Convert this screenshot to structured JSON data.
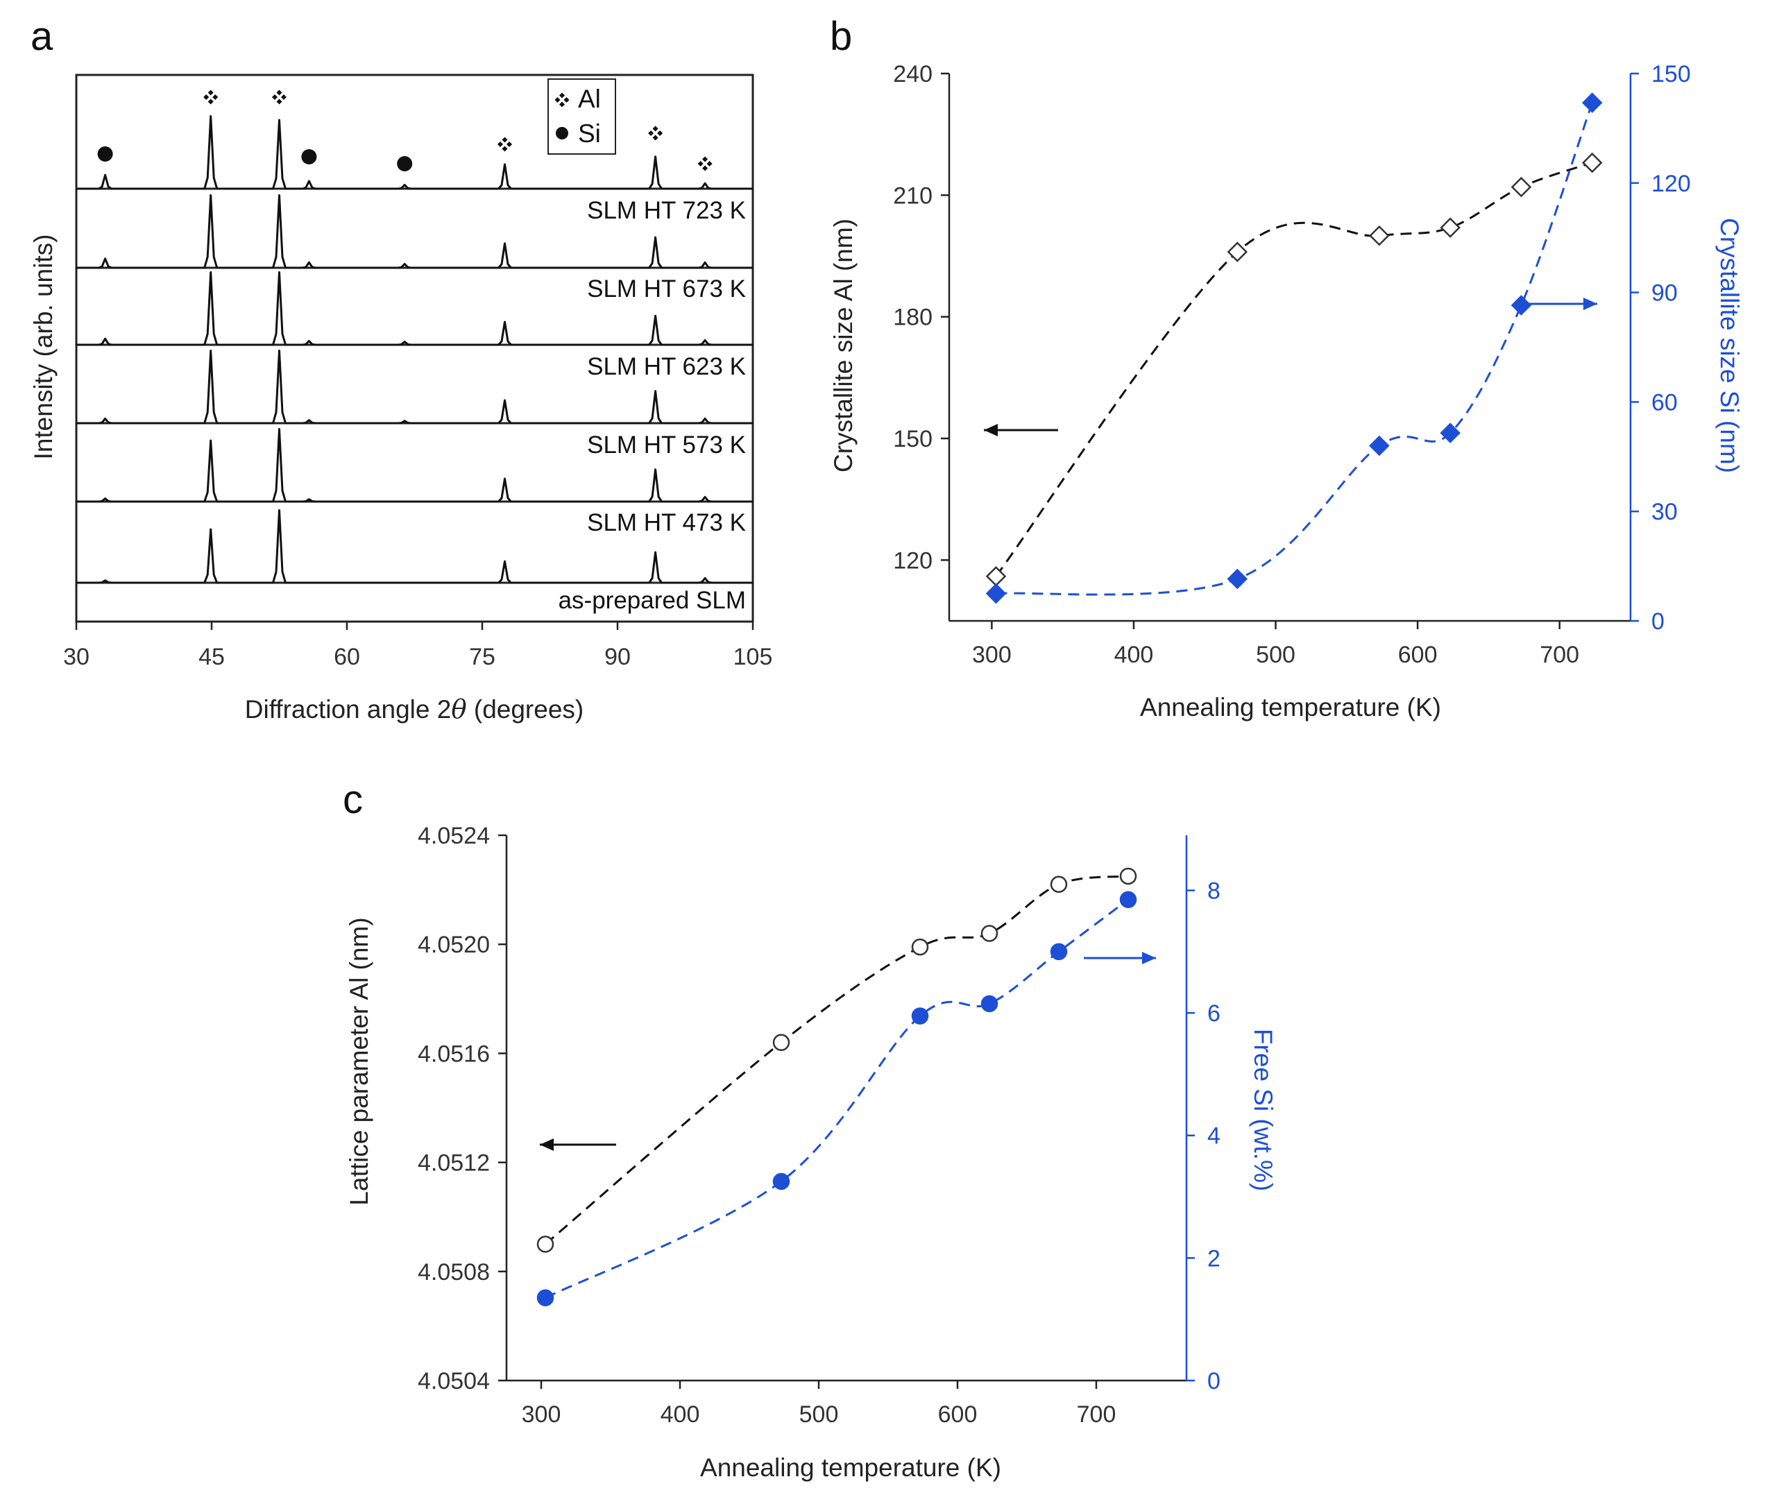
{
  "colors": {
    "black": "#111111",
    "blue": "#1d4fd6"
  },
  "chart_data": [
    {
      "panel": "a",
      "type": "line",
      "xlabel": "Diffraction angle 2θ (degrees)",
      "ylabel": "Intensity (arb. units)",
      "xlim": [
        30,
        105
      ],
      "xticks": [
        "30",
        "45",
        "60",
        "75",
        "90",
        "105"
      ],
      "legend": [
        {
          "marker": "diamond-cluster-icon",
          "label": "Al"
        },
        {
          "marker": "filled-circle-icon",
          "label": "Si"
        }
      ],
      "al_peaks": [
        44.9,
        52.5,
        77.5,
        94.2,
        99.7
      ],
      "si_peaks": [
        33.2,
        55.8,
        66.4
      ],
      "series": [
        {
          "name": "SLM HT 723 K",
          "peaks": [
            [
              33.2,
              0.18
            ],
            [
              44.9,
              0.95
            ],
            [
              52.5,
              0.9
            ],
            [
              55.8,
              0.1
            ],
            [
              66.4,
              0.05
            ],
            [
              77.5,
              0.32
            ],
            [
              94.2,
              0.42
            ],
            [
              99.7,
              0.07
            ]
          ]
        },
        {
          "name": "SLM HT 673 K",
          "peaks": [
            [
              33.2,
              0.12
            ],
            [
              44.9,
              0.95
            ],
            [
              52.5,
              0.95
            ],
            [
              55.8,
              0.07
            ],
            [
              66.4,
              0.05
            ],
            [
              77.5,
              0.32
            ],
            [
              94.2,
              0.4
            ],
            [
              99.7,
              0.07
            ]
          ]
        },
        {
          "name": "SLM HT 623 K",
          "peaks": [
            [
              33.2,
              0.08
            ],
            [
              44.9,
              0.95
            ],
            [
              52.5,
              0.95
            ],
            [
              55.8,
              0.05
            ],
            [
              66.4,
              0.04
            ],
            [
              77.5,
              0.3
            ],
            [
              94.2,
              0.38
            ],
            [
              99.7,
              0.06
            ]
          ]
        },
        {
          "name": "SLM HT 573 K",
          "peaks": [
            [
              33.2,
              0.06
            ],
            [
              44.9,
              0.95
            ],
            [
              52.5,
              0.95
            ],
            [
              55.8,
              0.04
            ],
            [
              66.4,
              0.03
            ],
            [
              77.5,
              0.3
            ],
            [
              94.2,
              0.42
            ],
            [
              99.7,
              0.06
            ]
          ]
        },
        {
          "name": "SLM HT 473 K",
          "peaks": [
            [
              33.2,
              0.04
            ],
            [
              44.9,
              0.8
            ],
            [
              52.5,
              0.95
            ],
            [
              55.8,
              0.03
            ],
            [
              77.5,
              0.3
            ],
            [
              94.2,
              0.42
            ],
            [
              99.7,
              0.06
            ]
          ]
        },
        {
          "name": "as-prepared SLM",
          "peaks": [
            [
              33.2,
              0.03
            ],
            [
              44.9,
              0.7
            ],
            [
              52.5,
              0.95
            ],
            [
              77.5,
              0.28
            ],
            [
              94.2,
              0.4
            ],
            [
              99.7,
              0.06
            ]
          ]
        }
      ]
    },
    {
      "panel": "b",
      "type": "scatter",
      "x": [
        303,
        473,
        573,
        623,
        673,
        723
      ],
      "xlabel": "Annealing temperature (K)",
      "xlim": [
        270,
        750
      ],
      "xticks": [
        "300",
        "400",
        "500",
        "600",
        "700"
      ],
      "ylabel_left": "Crystallite size Al (nm)",
      "ylim_left": [
        105,
        240
      ],
      "yticks_left": [
        "120",
        "150",
        "180",
        "210",
        "240"
      ],
      "ylabel_right": "Crystallite size Si (nm)",
      "ylim_right": [
        0,
        150
      ],
      "yticks_right": [
        "0",
        "30",
        "60",
        "90",
        "120",
        "150"
      ],
      "series": [
        {
          "name": "Crystallite size Al",
          "axis": "left",
          "marker": "open-diamond",
          "values": [
            116,
            196,
            200,
            202,
            212,
            218
          ]
        },
        {
          "name": "Crystallite size Si",
          "axis": "right",
          "marker": "filled-diamond",
          "values": [
            7.5,
            11.5,
            48,
            51.5,
            86.5,
            142
          ]
        }
      ]
    },
    {
      "panel": "c",
      "type": "scatter",
      "x": [
        303,
        473,
        573,
        623,
        673,
        723
      ],
      "xlabel": "Annealing temperature (K)",
      "xlim": [
        275,
        765
      ],
      "xticks": [
        "300",
        "400",
        "500",
        "600",
        "700"
      ],
      "ylabel_left": "Lattice parameter Al (nm)",
      "ylim_left": [
        4.0504,
        4.0524
      ],
      "yticks_left": [
        "4.0504",
        "4.0508",
        "4.0512",
        "4.0516",
        "4.0520",
        "4.0524"
      ],
      "ylabel_right": "Free Si (wt.%)",
      "ylim_right": [
        0,
        8.9
      ],
      "yticks_right": [
        "0",
        "2",
        "4",
        "6",
        "8"
      ],
      "series": [
        {
          "name": "Lattice parameter Al",
          "axis": "left",
          "marker": "open-circle",
          "values": [
            4.0509,
            4.05164,
            4.05199,
            4.05204,
            4.05222,
            4.05225
          ]
        },
        {
          "name": "Free Si",
          "axis": "right",
          "marker": "filled-circle",
          "values": [
            1.35,
            3.25,
            5.95,
            6.15,
            7.0,
            7.85
          ]
        }
      ]
    }
  ]
}
